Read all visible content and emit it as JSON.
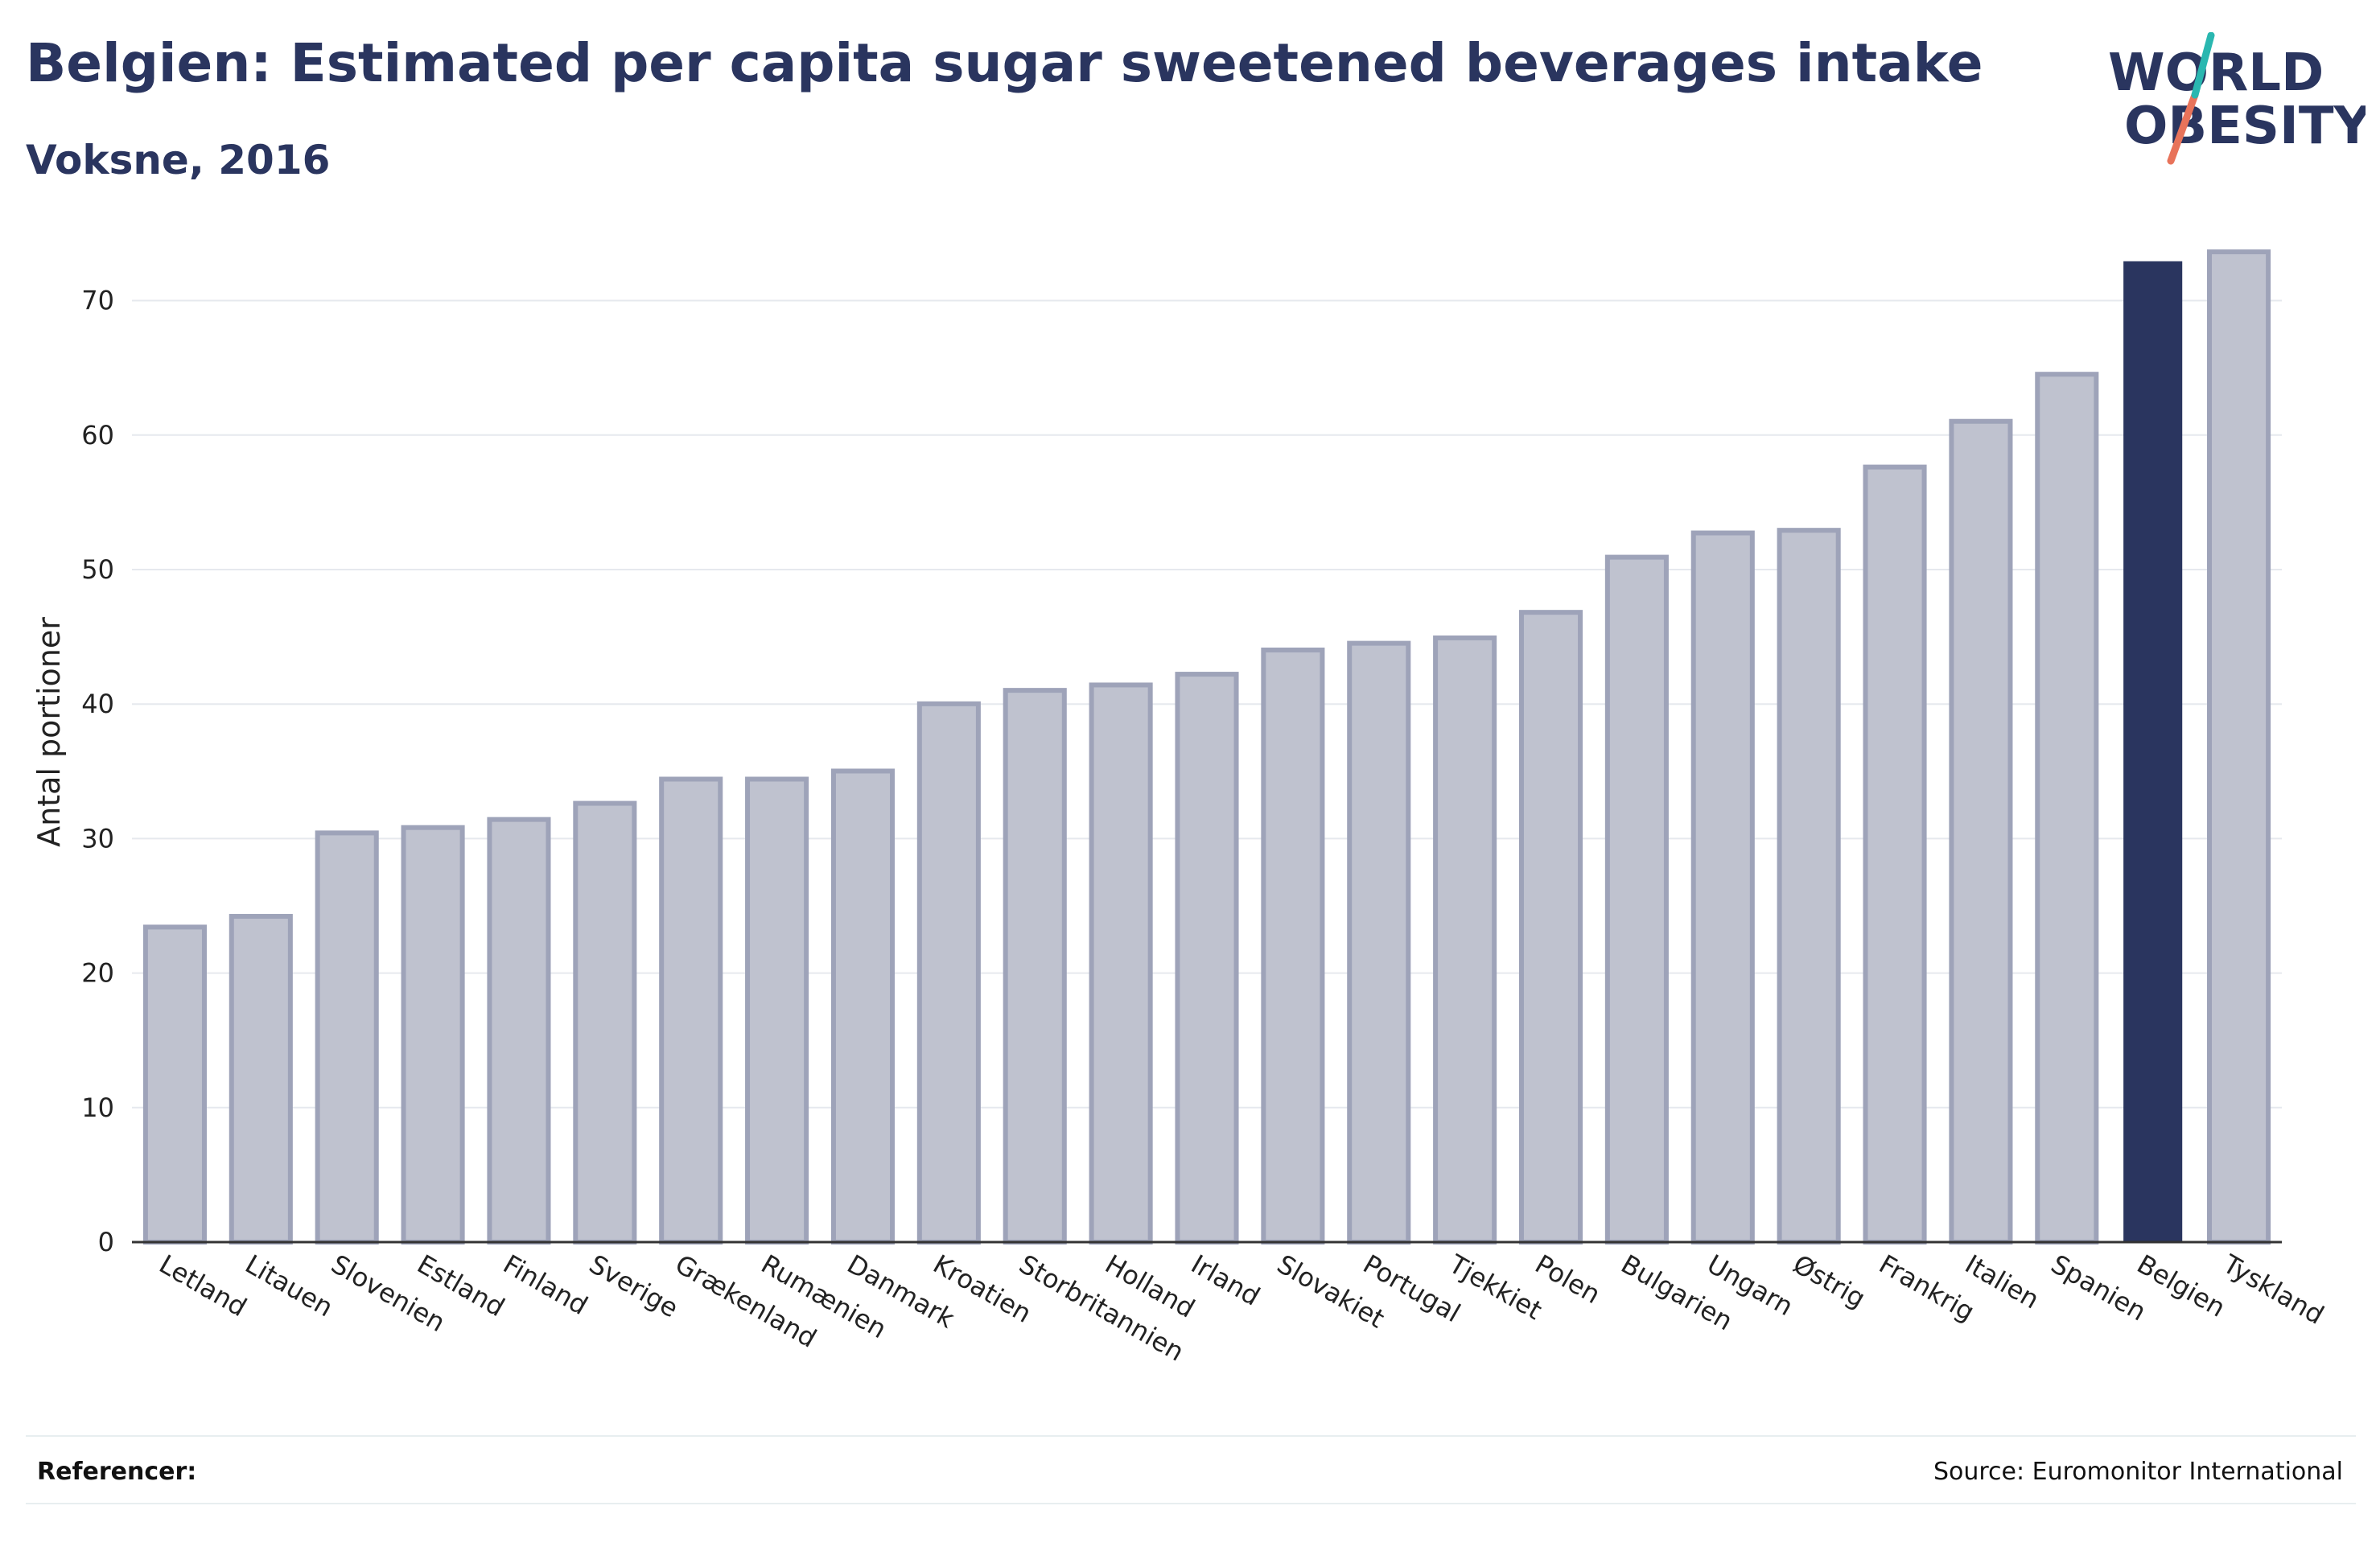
{
  "header": {
    "title": "Belgien: Estimated per capita sugar sweetened beverages intake",
    "subtitle": "Voksne, 2016"
  },
  "logo": {
    "line1": "WORLD",
    "line2": "OBESITY",
    "slash_colors": [
      "#2ab7b0",
      "#e8735a"
    ]
  },
  "footer": {
    "references_label": "Referencer:",
    "source": "Source: Euromonitor International"
  },
  "colors": {
    "bar": "#bfc2cf",
    "bar_border": "#9ea3b9",
    "highlight": "#2a355f",
    "grid": "#e6e9ee",
    "text": "#2a355f"
  },
  "chart_data": {
    "type": "bar",
    "title": "Belgien: Estimated per capita sugar sweetened beverages intake",
    "subtitle": "Voksne, 2016",
    "xlabel": "",
    "ylabel": "Antal portioner",
    "ylim": [
      0,
      75
    ],
    "yticks": [
      0,
      10,
      20,
      30,
      40,
      50,
      60,
      70
    ],
    "grid": true,
    "highlight": "Belgien",
    "categories": [
      "Letland",
      "Litauen",
      "Slovenien",
      "Estland",
      "Finland",
      "Sverige",
      "Grækenland",
      "Rumænien",
      "Danmark",
      "Kroatien",
      "Storbritannien",
      "Holland",
      "Irland",
      "Slovakiet",
      "Portugal",
      "Tjekkiet",
      "Polen",
      "Bulgarien",
      "Ungarn",
      "Østrig",
      "Frankrig",
      "Italien",
      "Spanien",
      "Belgien",
      "Tyskland"
    ],
    "values": [
      23.6,
      24.4,
      30.6,
      31.0,
      31.6,
      32.8,
      34.6,
      34.6,
      35.2,
      40.2,
      41.2,
      41.6,
      42.4,
      44.2,
      44.7,
      45.1,
      47.0,
      51.1,
      52.9,
      53.1,
      57.8,
      61.2,
      64.7,
      73.1,
      73.8
    ]
  }
}
